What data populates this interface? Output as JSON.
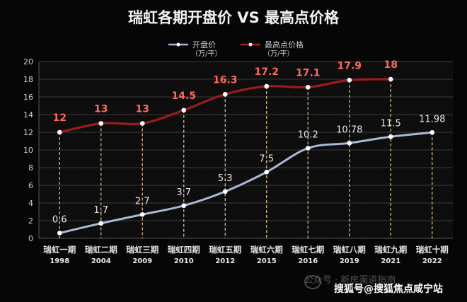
{
  "chart_data": {
    "type": "line",
    "title": "瑞虹各期开盘价 VS 最高点价格",
    "categories": [
      "瑞虹一期",
      "瑞虹二期",
      "瑞虹三期",
      "瑞虹四期",
      "瑞虹五期",
      "瑞虹六期",
      "瑞虹七期",
      "瑞虹八期",
      "瑞虹九期",
      "瑞虹十期"
    ],
    "years": [
      "1998",
      "2004",
      "2009",
      "2010",
      "2012",
      "2015",
      "2016",
      "2019",
      "2021",
      "2022"
    ],
    "ylim": [
      0,
      20
    ],
    "yticks": [
      0,
      2,
      4,
      6,
      8,
      10,
      12,
      14,
      16,
      18,
      20
    ],
    "grid": true,
    "legend_position": "top-center",
    "series": [
      {
        "name": "开盘价",
        "unit": "（万/平）",
        "color": "#aab8d8",
        "values": [
          0.6,
          1.7,
          2.7,
          3.7,
          5.3,
          7.5,
          10.2,
          10.78,
          11.5,
          11.98
        ],
        "labels": [
          "0.6",
          "1.7",
          "2.7",
          "3.7",
          "5.3",
          "7.5",
          "10.2",
          "10.78",
          "11.5",
          "11.98"
        ]
      },
      {
        "name": "最高点价格",
        "unit": "（万/平）",
        "color": "#8b1a1a",
        "label_color": "#ff6a5a",
        "values": [
          12,
          13,
          13,
          14.5,
          16.3,
          17.2,
          17.1,
          17.9,
          18,
          null
        ],
        "labels": [
          "12",
          "13",
          "13",
          "14.5",
          "16.3",
          "17.2",
          "17.1",
          "17.9",
          "18",
          ""
        ]
      }
    ]
  },
  "watermark": {
    "faint": "公众号 · 新房渠道指南",
    "main": "搜狐号@搜狐焦点咸宁站"
  }
}
